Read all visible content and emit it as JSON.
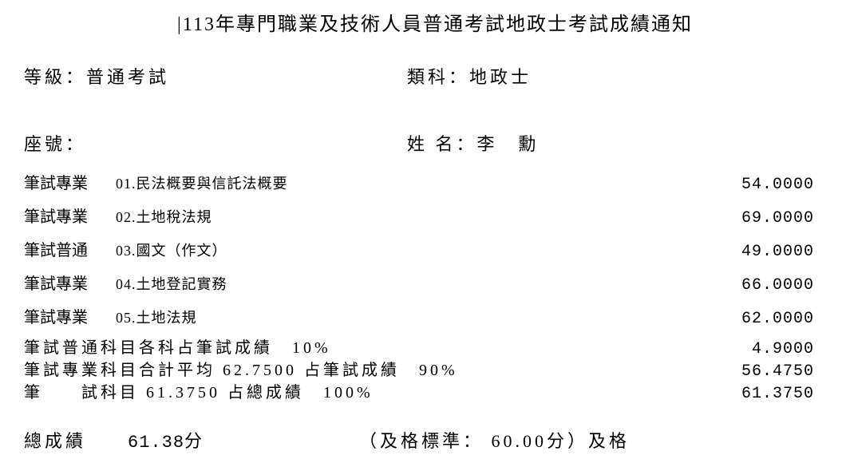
{
  "title": "|113年專門職業及技術人員普通考試地政士考試成績通知",
  "level_label": "等級：",
  "level_value": "普通考試",
  "category_label": "類科：",
  "category_value": "地政士",
  "seat_label": "座號：",
  "name_label": "姓 名：",
  "name_value": "李　勳",
  "subjects": [
    {
      "cat": "筆試專業",
      "name": "01.民法概要與信託法概要",
      "score": "54.0000"
    },
    {
      "cat": "筆試專業",
      "name": "02.土地稅法規",
      "score": "69.0000"
    },
    {
      "cat": "筆試普通",
      "name": "03.國文（作文）",
      "score": "49.0000"
    },
    {
      "cat": "筆試專業",
      "name": "04.土地登記實務",
      "score": "66.0000"
    },
    {
      "cat": "筆試專業",
      "name": "05.土地法規",
      "score": "62.0000"
    }
  ],
  "calc": [
    {
      "text": "筆試普通科目各科占筆試成績　10%",
      "score": "4.9000"
    },
    {
      "text": "筆試專業科目合計平均 62.7500 占筆試成績　90%",
      "score": "56.4750"
    },
    {
      "text": "筆　　試科目 61.3750 占總成績　100%",
      "score": "61.3750"
    }
  ],
  "final_label": "總成績",
  "final_score": "61.38分",
  "pass_standard": "（及格標準： 60.00分）及格"
}
